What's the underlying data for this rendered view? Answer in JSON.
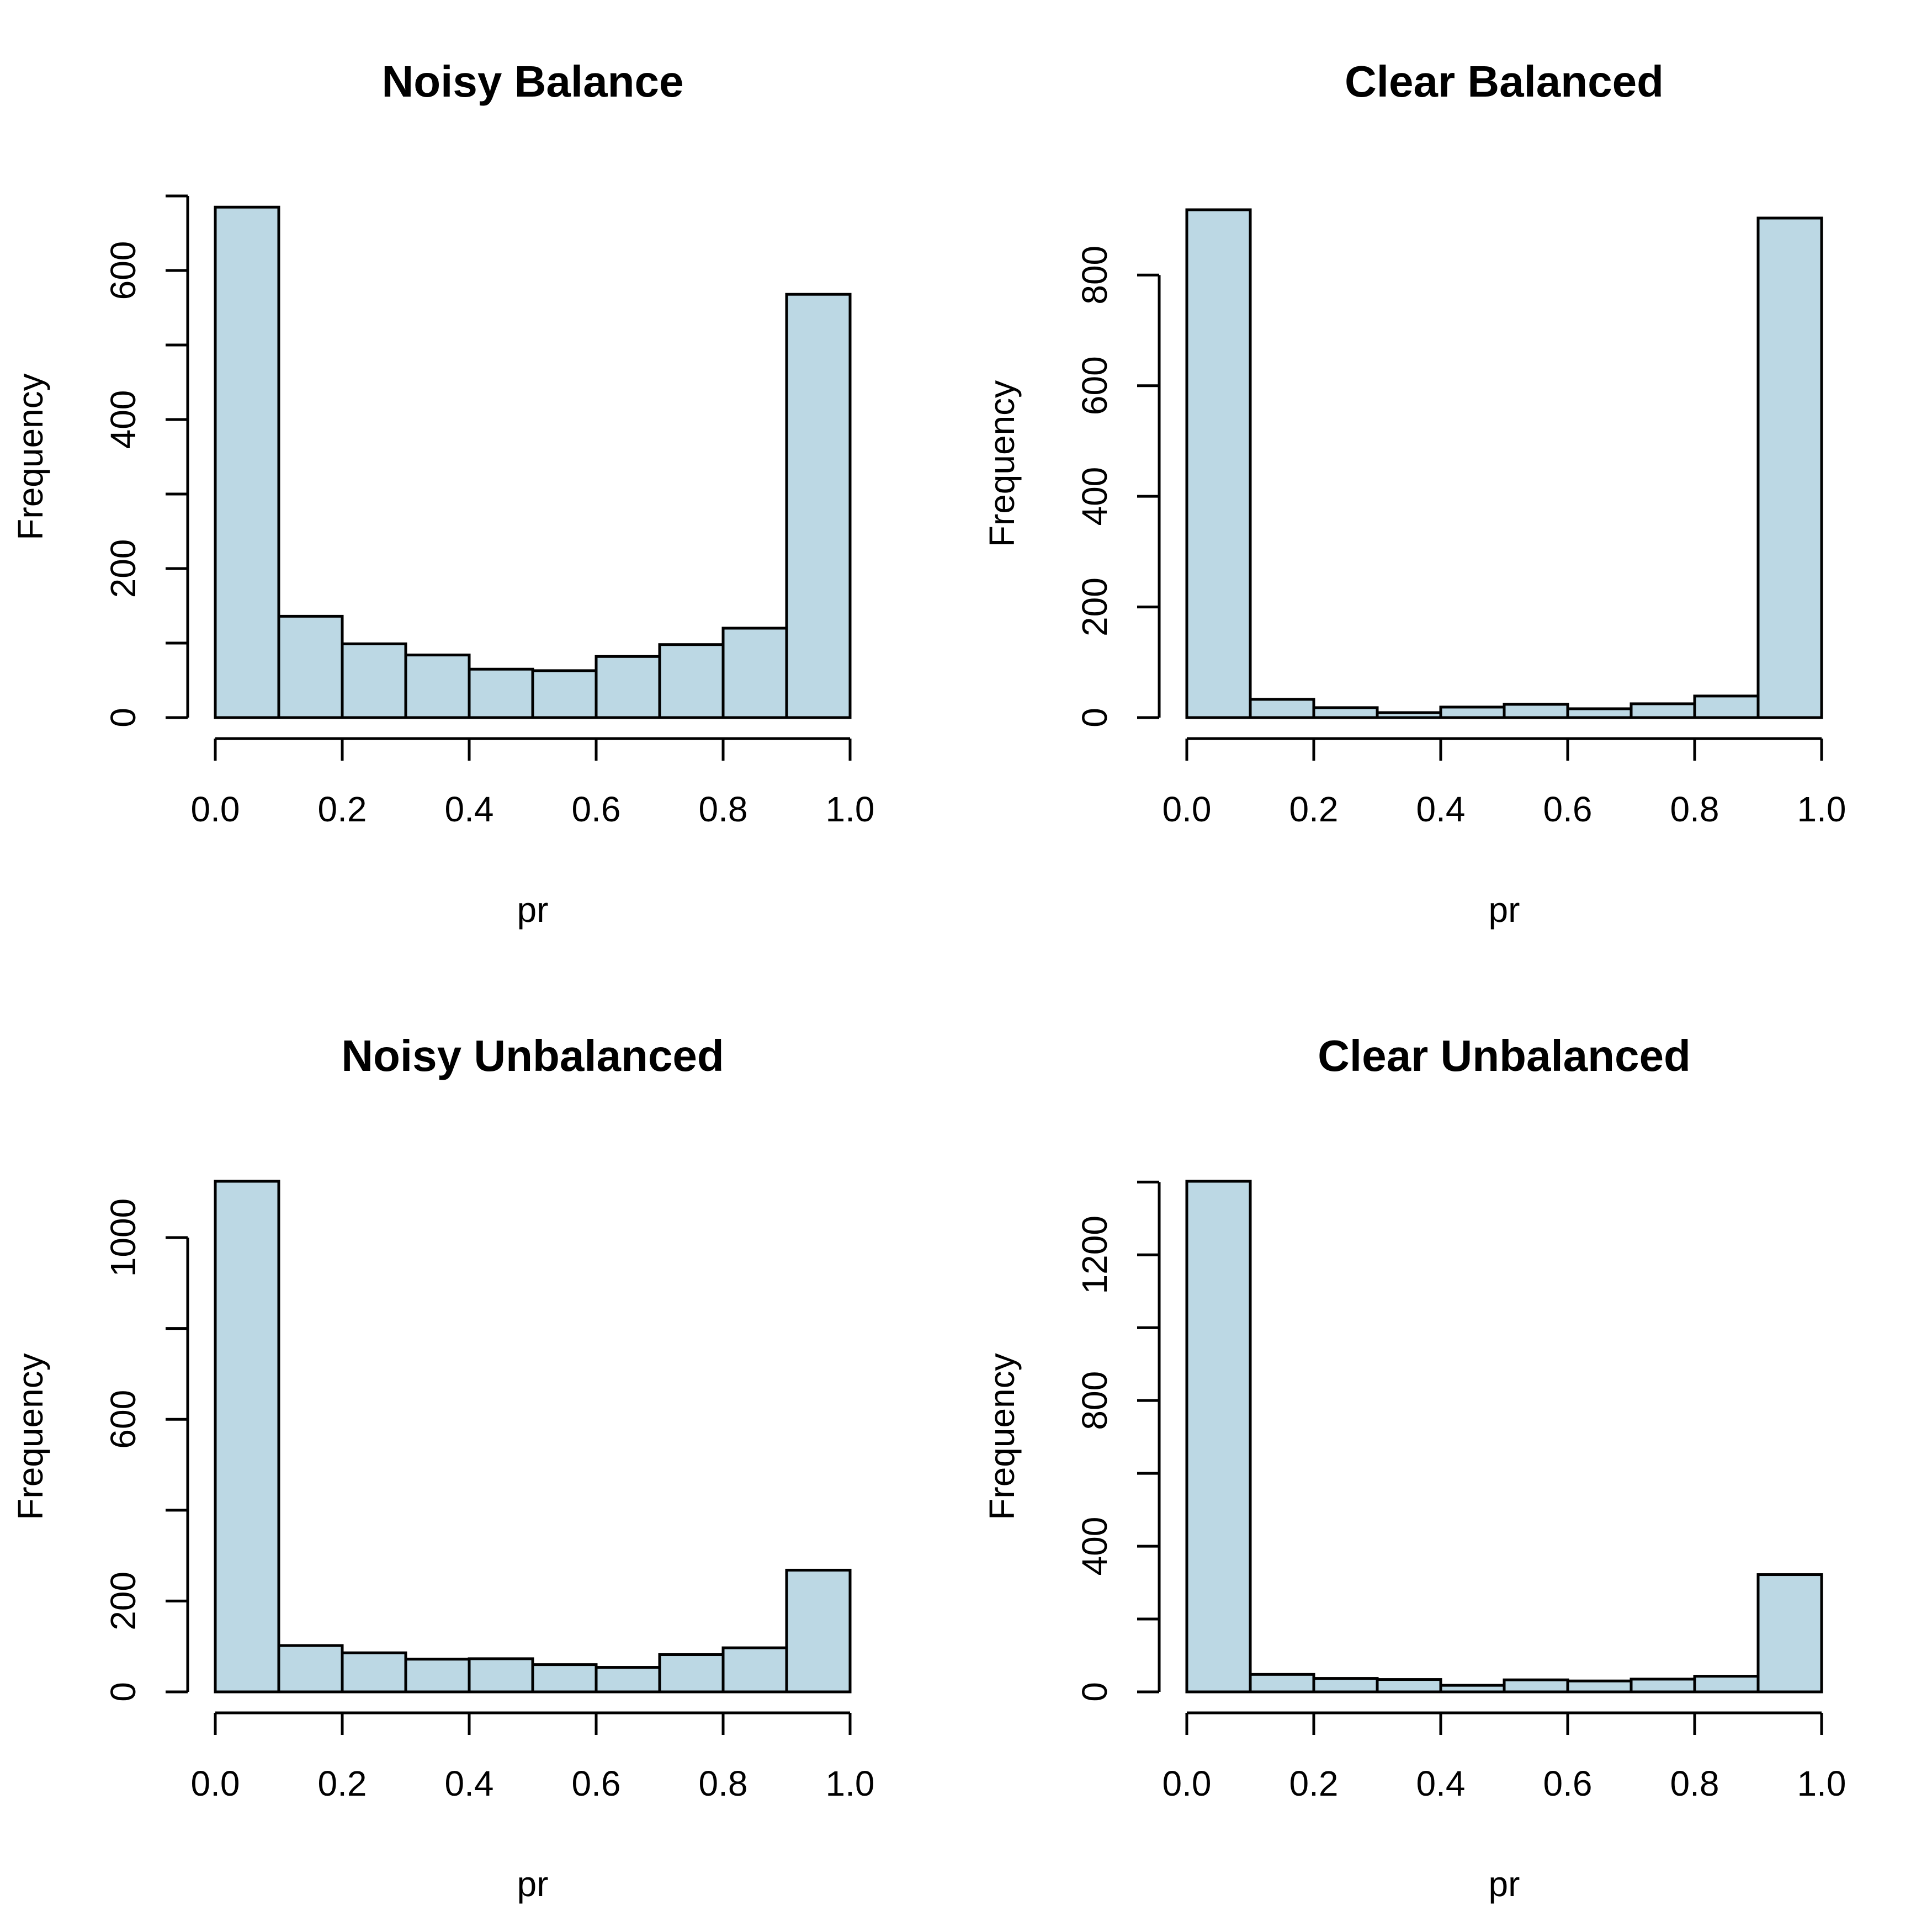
{
  "colors": {
    "bar_fill": "#bcd8e4",
    "bar_stroke": "#000000",
    "background": "#ffffff"
  },
  "chart_data": [
    {
      "type": "bar",
      "title": "Noisy Balance",
      "xlabel": "pr",
      "ylabel": "Frequency",
      "bin_edges": [
        0.0,
        0.1,
        0.2,
        0.3,
        0.4,
        0.5,
        0.6,
        0.7,
        0.8,
        0.9,
        1.0
      ],
      "values": [
        685,
        136,
        99,
        84,
        65,
        63,
        82,
        98,
        120,
        568
      ],
      "xlim": [
        0,
        1
      ],
      "x_ticks": [
        0.0,
        0.2,
        0.4,
        0.6,
        0.8,
        1.0
      ],
      "x_tick_labels": [
        "0.0",
        "0.2",
        "0.4",
        "0.6",
        "0.8",
        "1.0"
      ],
      "y_ticks": [
        0,
        100,
        200,
        300,
        400,
        500,
        600,
        700
      ],
      "y_tick_labels": [
        "0",
        "",
        "200",
        "",
        "400",
        "",
        "600",
        ""
      ],
      "ylim": [
        0,
        700
      ]
    },
    {
      "type": "bar",
      "title": "Clear Balanced",
      "xlabel": "pr",
      "ylabel": "Frequency",
      "bin_edges": [
        0.0,
        0.1,
        0.2,
        0.3,
        0.4,
        0.5,
        0.6,
        0.7,
        0.8,
        0.9,
        1.0
      ],
      "values": [
        918,
        33,
        18,
        9,
        19,
        24,
        16,
        25,
        39,
        903
      ],
      "xlim": [
        0,
        1
      ],
      "x_ticks": [
        0.0,
        0.2,
        0.4,
        0.6,
        0.8,
        1.0
      ],
      "x_tick_labels": [
        "0.0",
        "0.2",
        "0.4",
        "0.6",
        "0.8",
        "1.0"
      ],
      "y_ticks": [
        0,
        200,
        400,
        600,
        800
      ],
      "y_tick_labels": [
        "0",
        "200",
        "400",
        "600",
        "800"
      ],
      "ylim": [
        0,
        918
      ]
    },
    {
      "type": "bar",
      "title": "Noisy Unbalanced",
      "xlabel": "pr",
      "ylabel": "Frequency",
      "bin_edges": [
        0.0,
        0.1,
        0.2,
        0.3,
        0.4,
        0.5,
        0.6,
        0.7,
        0.8,
        0.9,
        1.0
      ],
      "values": [
        1124,
        102,
        86,
        72,
        73,
        60,
        54,
        82,
        97,
        268
      ],
      "xlim": [
        0,
        1
      ],
      "x_ticks": [
        0.0,
        0.2,
        0.4,
        0.6,
        0.8,
        1.0
      ],
      "x_tick_labels": [
        "0.0",
        "0.2",
        "0.4",
        "0.6",
        "0.8",
        "1.0"
      ],
      "y_ticks": [
        0,
        200,
        400,
        600,
        800,
        1000
      ],
      "y_tick_labels": [
        "0",
        "200",
        "",
        "600",
        "",
        "1000"
      ],
      "ylim": [
        0,
        1124
      ]
    },
    {
      "type": "bar",
      "title": "Clear Unbalanced",
      "xlabel": "pr",
      "ylabel": "Frequency",
      "bin_edges": [
        0.0,
        0.1,
        0.2,
        0.3,
        0.4,
        0.5,
        0.6,
        0.7,
        0.8,
        0.9,
        1.0
      ],
      "values": [
        1402,
        48,
        37,
        34,
        18,
        33,
        30,
        35,
        43,
        322
      ],
      "xlim": [
        0,
        1
      ],
      "x_ticks": [
        0.0,
        0.2,
        0.4,
        0.6,
        0.8,
        1.0
      ],
      "x_tick_labels": [
        "0.0",
        "0.2",
        "0.4",
        "0.6",
        "0.8",
        "1.0"
      ],
      "y_ticks": [
        0,
        200,
        400,
        600,
        800,
        1000,
        1200,
        1400
      ],
      "y_tick_labels": [
        "0",
        "",
        "400",
        "",
        "800",
        "",
        "1200",
        ""
      ],
      "ylim": [
        0,
        1402
      ]
    }
  ]
}
